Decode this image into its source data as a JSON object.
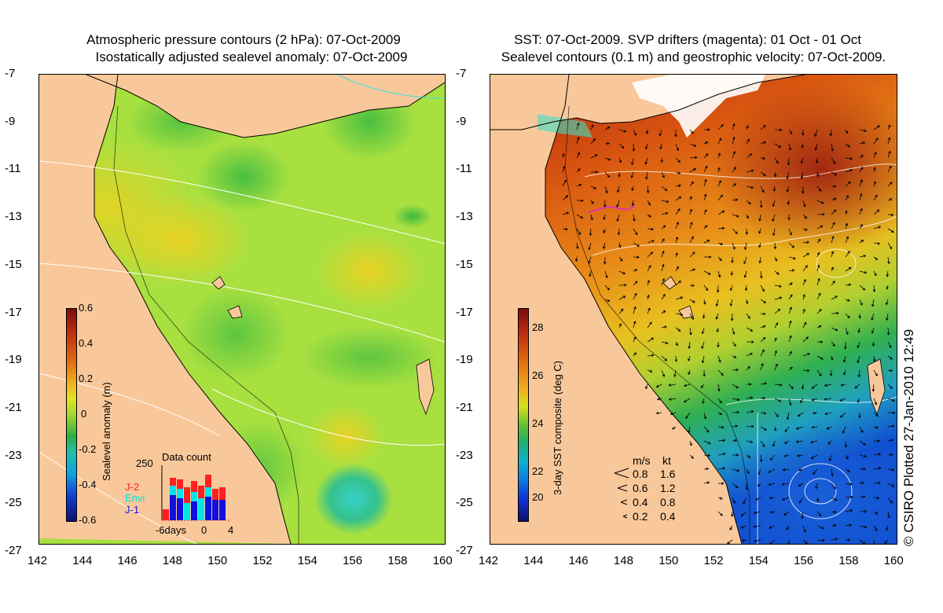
{
  "left_panel": {
    "title_line1": "Atmospheric pressure contours (2 hPa): 07-Oct-2009",
    "title_line2": "Isostatically adjusted sealevel anomaly: 07-Oct-2009",
    "colorbar": {
      "label": "Sealevel anomaly (m)",
      "ticks": [
        "0.6",
        "0.4",
        "0.2",
        "0",
        "-0.2",
        "-0.4",
        "-0.6"
      ]
    },
    "data_count": {
      "title": "Data count",
      "max_label": "250",
      "x_labels": [
        "-6days",
        "0",
        "4"
      ],
      "legend": [
        {
          "name": "J-2",
          "color": "#ff2020"
        },
        {
          "name": "Envi",
          "color": "#00e5e5"
        },
        {
          "name": "J-1",
          "color": "#1010e0"
        }
      ]
    }
  },
  "right_panel": {
    "title_line1": "SST: 07-Oct-2009. SVP drifters (magenta): 01 Oct - 01 Oct",
    "title_line2": "Sealevel contours (0.1 m) and geostrophic velocity: 07-Oct-2009.",
    "colorbar": {
      "label": "3-day SST composite (deg C)",
      "ticks": [
        "28",
        "26",
        "24",
        "22",
        "20"
      ]
    },
    "velocity_legend": {
      "header_ms": "m/s",
      "header_kt": "kt",
      "rows": [
        {
          "ms": "0.8",
          "kt": "1.6"
        },
        {
          "ms": "0.6",
          "kt": "1.2"
        },
        {
          "ms": "0.4",
          "kt": "0.8"
        },
        {
          "ms": "0.2",
          "kt": "0.4"
        }
      ]
    }
  },
  "y_axis_ticks": [
    "-7",
    "-9",
    "-11",
    "-13",
    "-15",
    "-17",
    "-19",
    "-21",
    "-23",
    "-25",
    "-27"
  ],
  "x_axis_ticks": [
    "142",
    "144",
    "146",
    "148",
    "150",
    "152",
    "154",
    "156",
    "158",
    "160"
  ],
  "credit": "© CSIRO Plotted 27-Jan-2010 12:49",
  "colors": {
    "land": "#f9c89a",
    "sla_mid": "#a8e040",
    "sst_warm": "#b02010"
  }
}
